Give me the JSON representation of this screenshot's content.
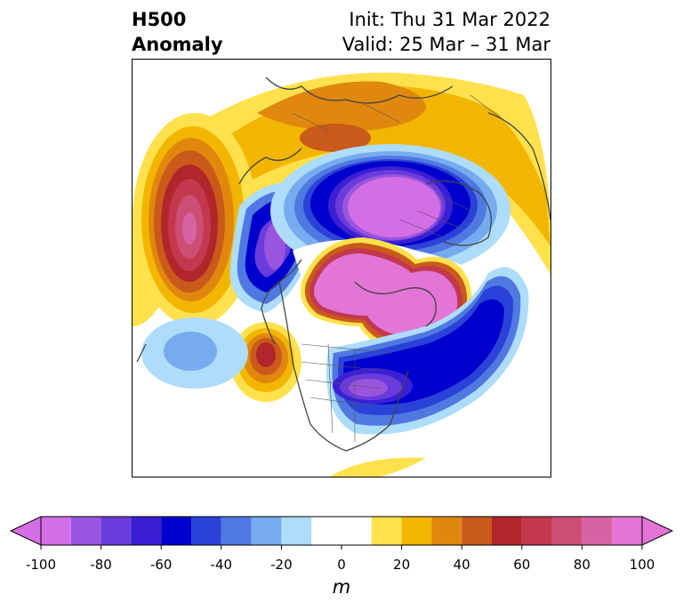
{
  "title": {
    "left_line1": "H500",
    "left_line2": "Anomaly",
    "right_line1": "Init: Thu 31 Mar 2022",
    "right_line2": "Valid: 25 Mar – 31 Mar"
  },
  "colorbar": {
    "unit": "m",
    "tick_labels": [
      "-100",
      "-80",
      "-60",
      "-40",
      "-20",
      "0",
      "20",
      "40",
      "60",
      "80",
      "100"
    ],
    "bins": [
      -100,
      -90,
      -80,
      -70,
      -60,
      -50,
      -40,
      -30,
      -20,
      -10,
      10,
      20,
      30,
      40,
      50,
      60,
      70,
      80,
      90,
      100
    ],
    "colors": [
      "#d46ee6",
      "#9a55de",
      "#6b3cdb",
      "#3a1fd4",
      "#0000cd",
      "#2a42d8",
      "#4f79e0",
      "#76acef",
      "#aedcfb",
      "#ffffff",
      "#ffe14d",
      "#f2b600",
      "#e0880e",
      "#c95a1a",
      "#b0262a",
      "#c2384e",
      "#cd4e74",
      "#d764a2",
      "#e275d6"
    ],
    "under_color": "#d46ee6",
    "over_color": "#e275d6"
  },
  "map": {
    "projection": "north-polar stereographic",
    "field": "500 hPa geopotential height anomaly"
  }
}
